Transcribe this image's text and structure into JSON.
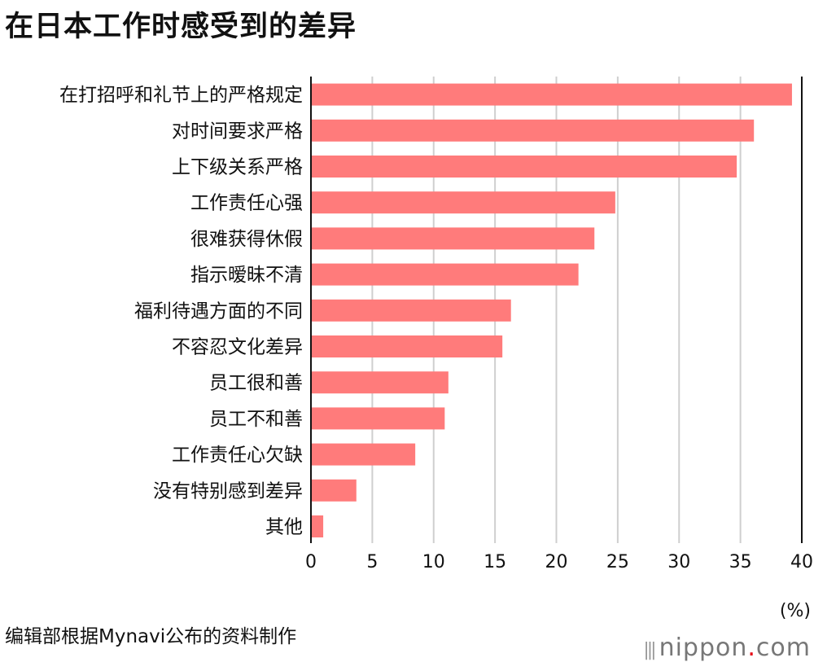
{
  "title": "在日本工作时感受到的差异",
  "chart_data": {
    "type": "bar",
    "orientation": "horizontal",
    "categories": [
      "在打招呼和礼节上的严格规定",
      "对时间要求严格",
      "上下级关系严格",
      "工作责任心强",
      "很难获得休假",
      "指示暧昧不清",
      "福利待遇方面的不同",
      "不容忍文化差异",
      "员工很和善",
      "员工不和善",
      "工作责任心欠缺",
      "没有特别感到差异",
      "其他"
    ],
    "values": [
      39.2,
      36.1,
      34.7,
      24.8,
      23.1,
      21.8,
      16.3,
      15.6,
      11.2,
      10.9,
      8.5,
      3.7,
      1.0
    ],
    "xlim": [
      0,
      40
    ],
    "xticks": [
      0,
      5,
      10,
      15,
      20,
      25,
      30,
      35,
      40
    ],
    "xlabel": "(%)",
    "bar_color": "#ff7b7b",
    "grid": true
  },
  "unit_label": "(%)",
  "source": "编辑部根据Mynavi公布的资料制作",
  "logo": {
    "bars": "|||",
    "name": "nippon",
    "dot": ".",
    "domain": "com"
  }
}
